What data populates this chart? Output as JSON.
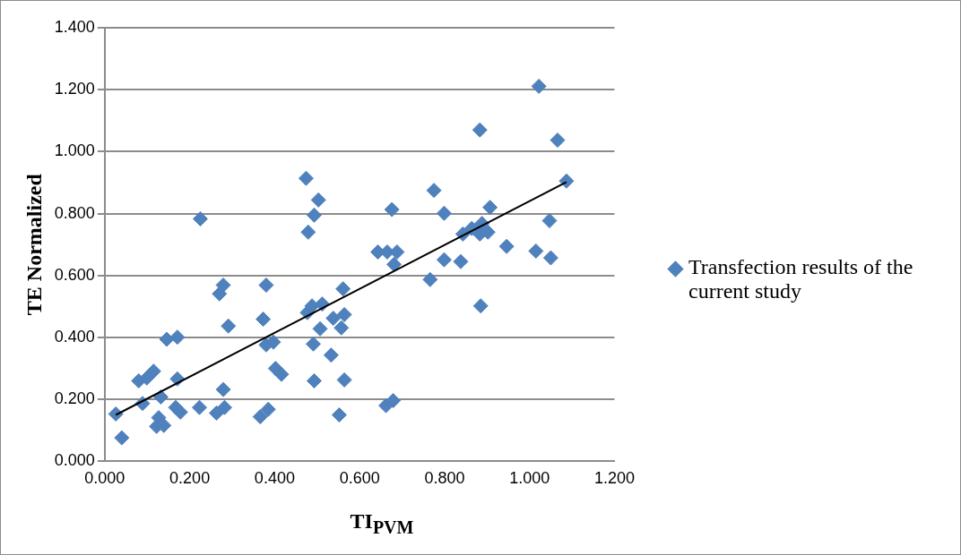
{
  "chart_data": {
    "type": "scatter",
    "xlabel": "TI$_{PVM}$",
    "ylabel": "TE Normalized",
    "legend": "right",
    "grid": "y",
    "xlim": [
      0,
      1.2
    ],
    "ylim": [
      0,
      1.4
    ],
    "xticks": [
      {
        "value": 0,
        "label": "0.000"
      },
      {
        "value": 0.2,
        "label": "0.200"
      },
      {
        "value": 0.4,
        "label": "0.400"
      },
      {
        "value": 0.6,
        "label": "0.600"
      },
      {
        "value": 0.8,
        "label": "0.800"
      },
      {
        "value": 1,
        "label": "1.000"
      },
      {
        "value": 1.2,
        "label": "1.200"
      }
    ],
    "yticks": [
      {
        "value": 0,
        "label": "0.000"
      },
      {
        "value": 0.2,
        "label": "0.200"
      },
      {
        "value": 0.4,
        "label": "0.400"
      },
      {
        "value": 0.6,
        "label": "0.600"
      },
      {
        "value": 0.8,
        "label": "0.800"
      },
      {
        "value": 1,
        "label": "1.000"
      },
      {
        "value": 1.2,
        "label": "1.200"
      },
      {
        "value": 1.4,
        "label": "1.400"
      }
    ],
    "series": [
      {
        "name": "Transfection results of the current study",
        "marker": "diamond",
        "color": "#4f81bd",
        "x": [
          0.026,
          0.04,
          0.08,
          0.089,
          0.099,
          0.115,
          0.122,
          0.127,
          0.132,
          0.139,
          0.146,
          0.167,
          0.171,
          0.171,
          0.178,
          0.225,
          0.223,
          0.263,
          0.27,
          0.279,
          0.279,
          0.282,
          0.291,
          0.366,
          0.373,
          0.38,
          0.38,
          0.385,
          0.397,
          0.402,
          0.416,
          0.474,
          0.479,
          0.477,
          0.488,
          0.491,
          0.493,
          0.493,
          0.503,
          0.507,
          0.512,
          0.533,
          0.538,
          0.552,
          0.561,
          0.557,
          0.564,
          0.564,
          0.643,
          0.662,
          0.665,
          0.676,
          0.679,
          0.681,
          0.688,
          0.766,
          0.775,
          0.799,
          0.799,
          0.838,
          0.843,
          0.864,
          0.883,
          0.883,
          0.885,
          0.888,
          0.902,
          0.907,
          0.946,
          1.015,
          1.022,
          1.047,
          1.05,
          1.066,
          1.087
        ],
        "values": [
          0.153,
          0.076,
          0.26,
          0.187,
          0.269,
          0.291,
          0.113,
          0.141,
          0.208,
          0.116,
          0.394,
          0.174,
          0.401,
          0.266,
          0.159,
          0.783,
          0.174,
          0.156,
          0.541,
          0.569,
          0.232,
          0.174,
          0.437,
          0.144,
          0.459,
          0.569,
          0.376,
          0.168,
          0.385,
          0.3,
          0.281,
          0.914,
          0.74,
          0.48,
          0.502,
          0.379,
          0.26,
          0.795,
          0.844,
          0.428,
          0.508,
          0.343,
          0.462,
          0.15,
          0.557,
          0.431,
          0.474,
          0.263,
          0.676,
          0.18,
          0.676,
          0.813,
          0.196,
          0.636,
          0.676,
          0.587,
          0.875,
          0.801,
          0.651,
          0.645,
          0.734,
          0.752,
          1.07,
          0.734,
          0.502,
          0.768,
          0.74,
          0.82,
          0.694,
          0.679,
          1.211,
          0.777,
          0.657,
          1.037,
          0.905
        ]
      },
      {
        "type": "line",
        "marker": "none",
        "color": "#000000",
        "x": [
          0.026,
          1.087
        ],
        "values": [
          0.15,
          0.902
        ]
      }
    ]
  }
}
